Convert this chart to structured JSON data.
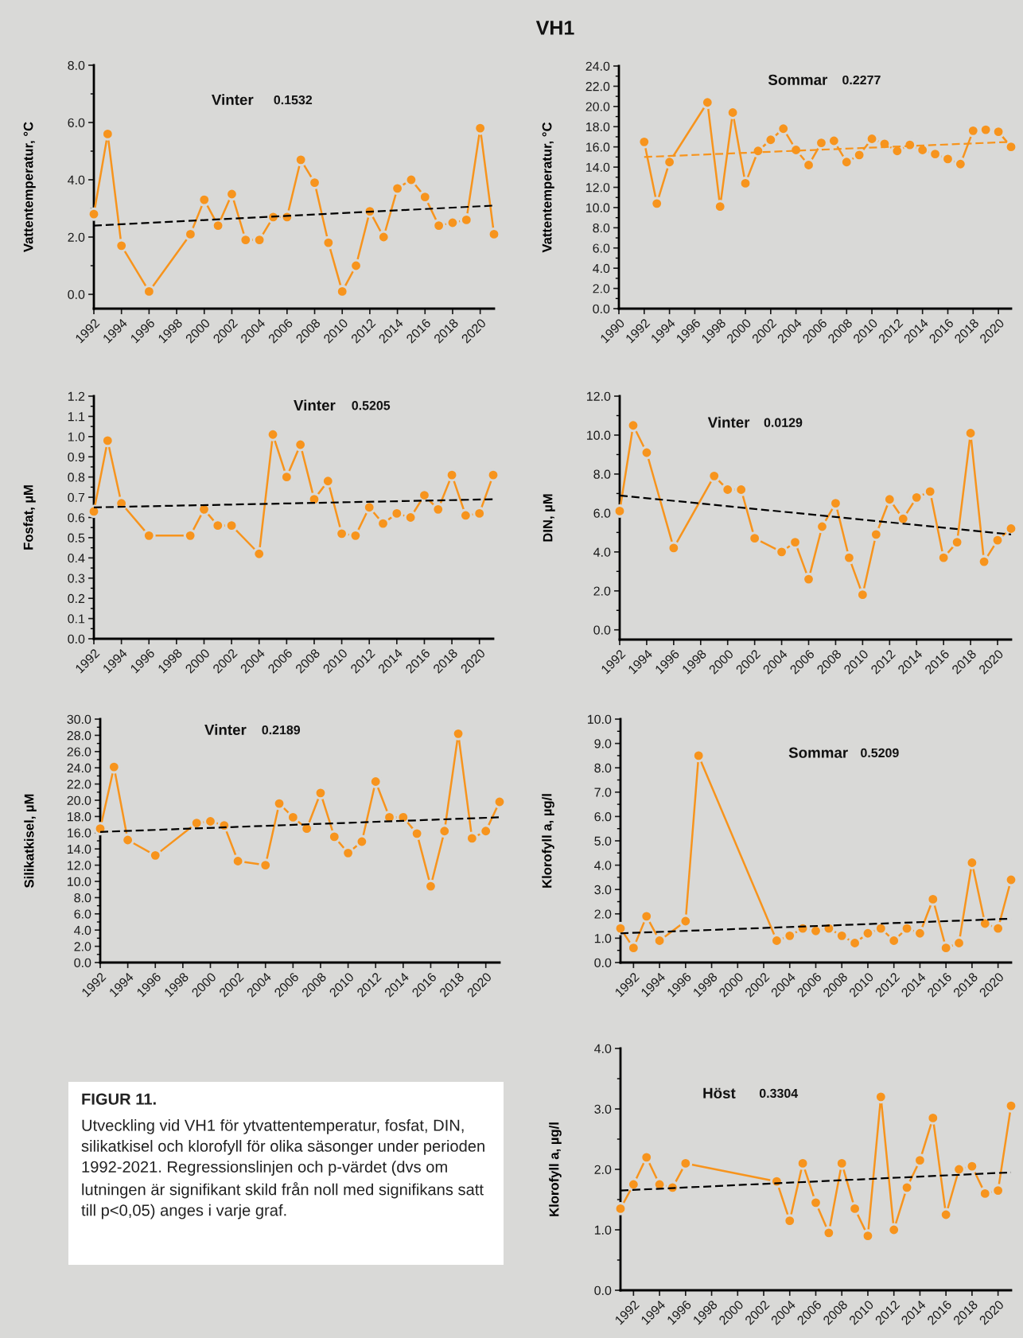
{
  "chart_data": [
    {
      "type": "other",
      "title": "VH1"
    },
    {
      "type": "line",
      "title": "Vinter",
      "annotations": [
        "0.1532"
      ],
      "ylabel": "Vattentemperatur, °C",
      "xlim": [
        1992,
        2021
      ],
      "xticks": [
        1992,
        1994,
        1996,
        1998,
        2000,
        2002,
        2004,
        2006,
        2008,
        2010,
        2012,
        2014,
        2016,
        2018,
        2020
      ],
      "ylim": [
        -0.5,
        8
      ],
      "yticks": [
        {
          "value": 0,
          "label": "0.0"
        },
        {
          "value": 1,
          "label": null
        },
        {
          "value": 2,
          "label": "2.0"
        },
        {
          "value": 3,
          "label": null
        },
        {
          "value": 4,
          "label": "4.0"
        },
        {
          "value": 5,
          "label": null
        },
        {
          "value": 6,
          "label": "6.0"
        },
        {
          "value": 7,
          "label": null
        },
        {
          "value": 8,
          "label": "8.0"
        }
      ],
      "series": [
        {
          "type": "line",
          "color": "#f7941d",
          "marker": "circle",
          "line_style": "solid",
          "x": [
            1992,
            1993,
            1994,
            1996,
            1999,
            2000,
            2001,
            2002,
            2003,
            2004,
            2005,
            2006,
            2007,
            2008,
            2009,
            2010,
            2011,
            2012,
            2013,
            2014,
            2015,
            2016,
            2017,
            2018,
            2019,
            2020,
            2021
          ],
          "values": [
            2.8,
            5.6,
            1.7,
            0.1,
            2.1,
            3.3,
            2.4,
            3.5,
            1.9,
            1.9,
            2.7,
            2.7,
            4.7,
            3.9,
            1.8,
            0.1,
            1.0,
            2.9,
            2.0,
            3.7,
            4.0,
            3.4,
            2.4,
            2.5,
            2.6,
            5.8,
            2.1
          ]
        },
        {
          "type": "line",
          "color": "#000000",
          "marker": "none",
          "line_style": "dashed",
          "x": [
            1992,
            2021
          ],
          "values": [
            2.4,
            3.1
          ]
        }
      ]
    },
    {
      "type": "line",
      "title": "Sommar",
      "annotations": [
        "0.2277"
      ],
      "ylabel": "Vattentemperatur, °C",
      "xlim": [
        1990,
        2021
      ],
      "xticks": [
        1990,
        1992,
        1994,
        1996,
        1998,
        2000,
        2002,
        2004,
        2006,
        2008,
        2010,
        2012,
        2014,
        2016,
        2018,
        2020
      ],
      "ylim": [
        0,
        24
      ],
      "yticks": [
        {
          "value": 0,
          "label": "0.0"
        },
        {
          "value": 1,
          "label": null
        },
        {
          "value": 2,
          "label": "2.0"
        },
        {
          "value": 3,
          "label": null
        },
        {
          "value": 4,
          "label": "4.0"
        },
        {
          "value": 5,
          "label": null
        },
        {
          "value": 6,
          "label": "6.0"
        },
        {
          "value": 7,
          "label": null
        },
        {
          "value": 8,
          "label": "8.0"
        },
        {
          "value": 9,
          "label": null
        },
        {
          "value": 10,
          "label": "10.0"
        },
        {
          "value": 11,
          "label": null
        },
        {
          "value": 12,
          "label": "12.0"
        },
        {
          "value": 13,
          "label": null
        },
        {
          "value": 14,
          "label": "14.0"
        },
        {
          "value": 15,
          "label": null
        },
        {
          "value": 16,
          "label": "16.0"
        },
        {
          "value": 17,
          "label": null
        },
        {
          "value": 18,
          "label": "18.0"
        },
        {
          "value": 19,
          "label": null
        },
        {
          "value": 20,
          "label": "20.0"
        },
        {
          "value": 21,
          "label": null
        },
        {
          "value": 22,
          "label": "22.0"
        },
        {
          "value": 23,
          "label": null
        },
        {
          "value": 24,
          "label": "24.0"
        }
      ],
      "series": [
        {
          "type": "line",
          "color": "#f7941d",
          "marker": "circle",
          "line_style": "solid",
          "x": [
            1992,
            1993,
            1994,
            1997,
            1998,
            1999,
            2000,
            2001,
            2002,
            2003,
            2004,
            2005,
            2006,
            2007,
            2008,
            2009,
            2010,
            2011,
            2012,
            2013,
            2014,
            2015,
            2016,
            2017,
            2018,
            2019,
            2020,
            2021
          ],
          "values": [
            16.5,
            10.4,
            14.5,
            20.4,
            10.1,
            19.4,
            12.4,
            15.6,
            16.7,
            17.8,
            15.7,
            14.2,
            16.4,
            16.6,
            14.5,
            15.2,
            16.8,
            16.3,
            15.6,
            16.2,
            15.7,
            15.3,
            14.8,
            14.3,
            17.6,
            17.7,
            17.5,
            16.0
          ]
        },
        {
          "type": "line",
          "color": "#f7941d",
          "marker": "none",
          "line_style": "dashed",
          "x": [
            1992,
            2021
          ],
          "values": [
            15.0,
            16.5
          ]
        }
      ]
    },
    {
      "type": "line",
      "title": "Vinter",
      "annotations": [
        "0.5205"
      ],
      "ylabel": "Fosfat, µM",
      "xlim": [
        1992,
        2021
      ],
      "xticks": [
        1992,
        1994,
        1996,
        1998,
        2000,
        2002,
        2004,
        2006,
        2008,
        2010,
        2012,
        2014,
        2016,
        2018,
        2020
      ],
      "ylim": [
        0,
        1.2
      ],
      "yticks": [
        {
          "value": 0,
          "label": "0.0"
        },
        {
          "value": 0.05,
          "label": null
        },
        {
          "value": 0.1,
          "label": "0.1"
        },
        {
          "value": 0.15,
          "label": null
        },
        {
          "value": 0.2,
          "label": "0.2"
        },
        {
          "value": 0.25,
          "label": null
        },
        {
          "value": 0.3,
          "label": "0.3"
        },
        {
          "value": 0.35,
          "label": null
        },
        {
          "value": 0.4,
          "label": "0.4"
        },
        {
          "value": 0.45,
          "label": null
        },
        {
          "value": 0.5,
          "label": "0.5"
        },
        {
          "value": 0.55,
          "label": null
        },
        {
          "value": 0.6,
          "label": "0.6"
        },
        {
          "value": 0.65,
          "label": null
        },
        {
          "value": 0.7,
          "label": "0.7"
        },
        {
          "value": 0.75,
          "label": null
        },
        {
          "value": 0.8,
          "label": "0.8"
        },
        {
          "value": 0.85,
          "label": null
        },
        {
          "value": 0.9,
          "label": "0.9"
        },
        {
          "value": 0.95,
          "label": null
        },
        {
          "value": 1.0,
          "label": "1.0"
        },
        {
          "value": 1.05,
          "label": null
        },
        {
          "value": 1.1,
          "label": "1.1"
        },
        {
          "value": 1.15,
          "label": null
        },
        {
          "value": 1.2,
          "label": "1.2"
        }
      ],
      "series": [
        {
          "type": "line",
          "color": "#f7941d",
          "marker": "circle",
          "line_style": "solid",
          "x": [
            1992,
            1993,
            1994,
            1996,
            1999,
            2000,
            2001,
            2002,
            2004,
            2005,
            2006,
            2007,
            2008,
            2009,
            2010,
            2011,
            2012,
            2013,
            2014,
            2015,
            2016,
            2017,
            2018,
            2019,
            2020,
            2021
          ],
          "values": [
            0.63,
            0.98,
            0.67,
            0.51,
            0.51,
            0.64,
            0.56,
            0.56,
            0.42,
            1.01,
            0.8,
            0.96,
            0.69,
            0.78,
            0.52,
            0.51,
            0.65,
            0.57,
            0.62,
            0.6,
            0.71,
            0.64,
            0.81,
            0.61,
            0.62,
            0.81
          ]
        },
        {
          "type": "line",
          "color": "#000000",
          "marker": "none",
          "line_style": "dashed",
          "x": [
            1992,
            2021
          ],
          "values": [
            0.65,
            0.69
          ]
        }
      ]
    },
    {
      "type": "line",
      "title": "Vinter",
      "annotations": [
        "0.0129"
      ],
      "ylabel": "DIN, µM",
      "xlim": [
        1992,
        2021
      ],
      "xticks": [
        1992,
        1994,
        1996,
        1998,
        2000,
        2002,
        2004,
        2006,
        2008,
        2010,
        2012,
        2014,
        2016,
        2018,
        2020
      ],
      "ylim": [
        -0.5,
        12
      ],
      "yticks": [
        {
          "value": 0,
          "label": "0.0"
        },
        {
          "value": 1,
          "label": null
        },
        {
          "value": 2,
          "label": "2.0"
        },
        {
          "value": 3,
          "label": null
        },
        {
          "value": 4,
          "label": "4.0"
        },
        {
          "value": 5,
          "label": null
        },
        {
          "value": 6,
          "label": "6.0"
        },
        {
          "value": 7,
          "label": null
        },
        {
          "value": 8,
          "label": "8.0"
        },
        {
          "value": 9,
          "label": null
        },
        {
          "value": 10,
          "label": "10.0"
        },
        {
          "value": 11,
          "label": null
        },
        {
          "value": 12,
          "label": "12.0"
        }
      ],
      "series": [
        {
          "type": "line",
          "color": "#f7941d",
          "marker": "circle",
          "line_style": "solid",
          "x": [
            1992,
            1993,
            1994,
            1996,
            1999,
            2000,
            2001,
            2002,
            2004,
            2005,
            2006,
            2007,
            2008,
            2009,
            2010,
            2011,
            2012,
            2013,
            2014,
            2015,
            2016,
            2017,
            2018,
            2019,
            2020,
            2021
          ],
          "values": [
            6.1,
            10.5,
            9.1,
            4.2,
            7.9,
            7.2,
            7.2,
            4.7,
            4.0,
            4.5,
            2.6,
            5.3,
            6.5,
            3.7,
            1.8,
            4.9,
            6.7,
            5.7,
            6.8,
            7.1,
            3.7,
            4.5,
            10.1,
            3.5,
            4.6,
            5.2
          ]
        },
        {
          "type": "line",
          "color": "#000000",
          "marker": "none",
          "line_style": "dashed",
          "x": [
            1992,
            2021
          ],
          "values": [
            6.9,
            4.9
          ]
        }
      ]
    },
    {
      "type": "line",
      "title": "Vinter",
      "annotations": [
        "0.2189"
      ],
      "ylabel": "Silikatkisel, µM",
      "xlim": [
        1992,
        2021
      ],
      "xticks": [
        1992,
        1994,
        1996,
        1998,
        2000,
        2002,
        2004,
        2006,
        2008,
        2010,
        2012,
        2014,
        2016,
        2018,
        2020
      ],
      "ylim": [
        0,
        30
      ],
      "yticks": [
        {
          "value": 0,
          "label": "0.0"
        },
        {
          "value": 1,
          "label": null
        },
        {
          "value": 2,
          "label": "2.0"
        },
        {
          "value": 3,
          "label": null
        },
        {
          "value": 4,
          "label": "4.0"
        },
        {
          "value": 5,
          "label": null
        },
        {
          "value": 6,
          "label": "6.0"
        },
        {
          "value": 7,
          "label": null
        },
        {
          "value": 8,
          "label": "8.0"
        },
        {
          "value": 9,
          "label": null
        },
        {
          "value": 10,
          "label": "10.0"
        },
        {
          "value": 11,
          "label": null
        },
        {
          "value": 12,
          "label": "12.0"
        },
        {
          "value": 13,
          "label": null
        },
        {
          "value": 14,
          "label": "14.0"
        },
        {
          "value": 15,
          "label": null
        },
        {
          "value": 16,
          "label": "16.0"
        },
        {
          "value": 17,
          "label": null
        },
        {
          "value": 18,
          "label": "18.0"
        },
        {
          "value": 19,
          "label": null
        },
        {
          "value": 20,
          "label": "20.0"
        },
        {
          "value": 21,
          "label": null
        },
        {
          "value": 22,
          "label": "22.0"
        },
        {
          "value": 23,
          "label": null
        },
        {
          "value": 24,
          "label": "24.0"
        },
        {
          "value": 25,
          "label": null
        },
        {
          "value": 26,
          "label": "26.0"
        },
        {
          "value": 27,
          "label": null
        },
        {
          "value": 28,
          "label": "28.0"
        },
        {
          "value": 29,
          "label": null
        },
        {
          "value": 30,
          "label": "30.0"
        }
      ],
      "series": [
        {
          "type": "line",
          "color": "#f7941d",
          "marker": "circle",
          "line_style": "solid",
          "x": [
            1992,
            1993,
            1994,
            1996,
            1999,
            2000,
            2001,
            2002,
            2004,
            2005,
            2006,
            2007,
            2008,
            2009,
            2010,
            2011,
            2012,
            2013,
            2014,
            2015,
            2016,
            2017,
            2018,
            2019,
            2020,
            2021
          ],
          "values": [
            16.5,
            24.1,
            15.1,
            13.2,
            17.2,
            17.4,
            16.9,
            12.5,
            12.0,
            19.6,
            17.9,
            16.5,
            20.9,
            15.5,
            13.5,
            14.9,
            22.3,
            17.9,
            17.9,
            15.9,
            9.4,
            16.2,
            28.2,
            15.3,
            16.2,
            19.8
          ]
        },
        {
          "type": "line",
          "color": "#000000",
          "marker": "none",
          "line_style": "dashed",
          "x": [
            1992,
            2021
          ],
          "values": [
            16.1,
            17.9
          ]
        }
      ]
    },
    {
      "type": "line",
      "title": "Sommar",
      "annotations": [
        "0.5209"
      ],
      "ylabel": "Klorofyll a, µg/l",
      "xlim": [
        1991,
        2021
      ],
      "xticks": [
        1992,
        1994,
        1996,
        1998,
        2000,
        2002,
        2004,
        2006,
        2008,
        2010,
        2012,
        2014,
        2016,
        2018,
        2020
      ],
      "ylim": [
        0,
        10
      ],
      "yticks": [
        {
          "value": 0,
          "label": "0.0"
        },
        {
          "value": 0.5,
          "label": null
        },
        {
          "value": 1,
          "label": "1.0"
        },
        {
          "value": 1.5,
          "label": null
        },
        {
          "value": 2,
          "label": "2.0"
        },
        {
          "value": 2.5,
          "label": null
        },
        {
          "value": 3,
          "label": "3.0"
        },
        {
          "value": 3.5,
          "label": null
        },
        {
          "value": 4,
          "label": "4.0"
        },
        {
          "value": 4.5,
          "label": null
        },
        {
          "value": 5,
          "label": "5.0"
        },
        {
          "value": 5.5,
          "label": null
        },
        {
          "value": 6,
          "label": "6.0"
        },
        {
          "value": 6.5,
          "label": null
        },
        {
          "value": 7,
          "label": "7.0"
        },
        {
          "value": 7.5,
          "label": null
        },
        {
          "value": 8,
          "label": "8.0"
        },
        {
          "value": 8.5,
          "label": null
        },
        {
          "value": 9,
          "label": "9.0"
        },
        {
          "value": 9.5,
          "label": null
        },
        {
          "value": 10,
          "label": "10.0"
        }
      ],
      "series": [
        {
          "type": "line",
          "color": "#f7941d",
          "marker": "circle",
          "line_style": "solid",
          "x": [
            1991,
            1992,
            1993,
            1994,
            1996,
            1997,
            2003,
            2004,
            2005,
            2006,
            2007,
            2008,
            2009,
            2010,
            2011,
            2012,
            2013,
            2014,
            2015,
            2016,
            2017,
            2018,
            2019,
            2020,
            2021
          ],
          "values": [
            1.4,
            0.6,
            1.9,
            0.9,
            1.7,
            8.5,
            0.9,
            1.1,
            1.4,
            1.3,
            1.4,
            1.1,
            0.8,
            1.2,
            1.4,
            0.9,
            1.4,
            1.2,
            2.6,
            0.6,
            0.8,
            4.1,
            1.6,
            1.4,
            3.4
          ]
        },
        {
          "type": "line",
          "color": "#000000",
          "marker": "none",
          "line_style": "dashed",
          "x": [
            1991,
            2021
          ],
          "values": [
            1.2,
            1.8
          ]
        }
      ]
    },
    {
      "type": "other",
      "title": "FIGUR 11.",
      "annotations": [
        "Utveckling vid VH1 för ytvattentemperatur, fosfat, DIN, silikatkisel och klorofyll för olika säsonger under perioden 1992-2021. Regressionslinjen och p-värdet (dvs om lutningen är signifikant skild från noll med signifikans satt till p<0,05) anges i varje graf."
      ]
    },
    {
      "type": "line",
      "title": "Höst",
      "annotations": [
        "0.3304"
      ],
      "ylabel": "Klorofyll a, µg/l",
      "xlim": [
        1991,
        2021
      ],
      "xticks": [
        1992,
        1994,
        1996,
        1998,
        2000,
        2002,
        2004,
        2006,
        2008,
        2010,
        2012,
        2014,
        2016,
        2018,
        2020
      ],
      "ylim": [
        0,
        4
      ],
      "yticks": [
        {
          "value": 0,
          "label": "0.0"
        },
        {
          "value": 0.5,
          "label": null
        },
        {
          "value": 1,
          "label": "1.0"
        },
        {
          "value": 1.5,
          "label": null
        },
        {
          "value": 2,
          "label": "2.0"
        },
        {
          "value": 2.5,
          "label": null
        },
        {
          "value": 3,
          "label": "3.0"
        },
        {
          "value": 3.5,
          "label": null
        },
        {
          "value": 4,
          "label": "4.0"
        }
      ],
      "series": [
        {
          "type": "line",
          "color": "#f7941d",
          "marker": "circle",
          "line_style": "solid",
          "x": [
            1991,
            1992,
            1993,
            1994,
            1995,
            1996,
            2003,
            2004,
            2005,
            2006,
            2007,
            2008,
            2009,
            2010,
            2011,
            2012,
            2013,
            2014,
            2015,
            2016,
            2017,
            2018,
            2019,
            2020,
            2021
          ],
          "values": [
            1.35,
            1.75,
            2.2,
            1.75,
            1.7,
            2.1,
            1.8,
            1.15,
            2.1,
            1.45,
            0.95,
            2.1,
            1.35,
            0.9,
            3.2,
            1.0,
            1.7,
            2.15,
            2.85,
            1.25,
            2.0,
            2.05,
            1.6,
            1.65,
            3.05
          ]
        },
        {
          "type": "line",
          "color": "#000000",
          "marker": "none",
          "line_style": "dashed",
          "x": [
            1991,
            2021
          ],
          "values": [
            1.65,
            1.95
          ]
        }
      ]
    }
  ]
}
